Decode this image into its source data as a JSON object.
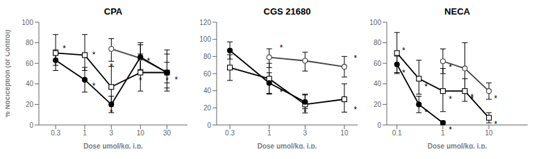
{
  "chart_data": [
    {
      "type": "line",
      "title": "CPA",
      "xlabel": "Dose μmol/kg, i.p.",
      "ylabel": "% Nociception (or Control)",
      "log": "x",
      "xlim": [
        0.15,
        70
      ],
      "ylim": [
        0,
        100
      ],
      "yticks": [
        0,
        20,
        40,
        60,
        80,
        100
      ],
      "xticks": [
        0.3,
        1,
        3,
        10,
        30
      ],
      "series": [
        {
          "marker": "open_circle",
          "color": "#444444",
          "x": [
            3.0,
            10.0,
            30.0
          ],
          "values": [
            74,
            65,
            51
          ],
          "error_low": [
            12,
            12,
            15
          ],
          "error_high": [
            10,
            15,
            18
          ]
        },
        {
          "marker": "open_square",
          "color": "#000000",
          "x": [
            0.3,
            1.0,
            3.0,
            10.0,
            30.0
          ],
          "values": [
            70,
            68,
            37,
            51,
            51
          ],
          "error_low": [
            12,
            15,
            15,
            18,
            18
          ],
          "error_high": [
            18,
            20,
            20,
            18,
            22
          ]
        },
        {
          "marker": "filled_circle",
          "color": "#000000",
          "x": [
            0.3,
            1.0,
            3.0,
            10.0,
            30.0
          ],
          "values": [
            63,
            44,
            20,
            66,
            51
          ],
          "error_low": [
            10,
            12,
            8,
            12,
            10
          ],
          "error_high": [
            10,
            12,
            8,
            12,
            10
          ]
        }
      ],
      "annotations": [
        {
          "x": 0.43,
          "y": 74,
          "text": "*"
        },
        {
          "x": 1.45,
          "y": 68,
          "text": "*"
        },
        {
          "x": 1.45,
          "y": 38,
          "text": "*"
        },
        {
          "x": 3.0,
          "y": 57,
          "text": "*"
        },
        {
          "x": 3.0,
          "y": 12,
          "text": "*"
        },
        {
          "x": 10.0,
          "y": 43,
          "text": "*"
        },
        {
          "x": 14.0,
          "y": 62,
          "text": "*"
        },
        {
          "x": 30.0,
          "y": 43,
          "text": "*"
        },
        {
          "x": 44.0,
          "y": 44,
          "text": "*"
        }
      ]
    },
    {
      "type": "line",
      "title": "CGS 21680",
      "xlabel": "Dose μmol/kg, i.p.",
      "log": "x",
      "xlim": [
        0.2,
        15
      ],
      "ylim": [
        0,
        120
      ],
      "yticks": [
        0,
        20,
        40,
        60,
        80,
        100,
        120
      ],
      "xticks": [
        0.3,
        1,
        3,
        10
      ],
      "series": [
        {
          "marker": "open_circle",
          "color": "#444444",
          "x": [
            1.0,
            3.0,
            10.0
          ],
          "values": [
            79,
            75,
            68
          ],
          "error_low": [
            12,
            12,
            12
          ],
          "error_high": [
            10,
            10,
            12
          ]
        },
        {
          "marker": "open_square",
          "color": "#000000",
          "x": [
            0.3,
            1.0,
            3.0,
            10.0
          ],
          "values": [
            67,
            54,
            24,
            30
          ],
          "error_low": [
            15,
            18,
            10,
            15
          ],
          "error_high": [
            15,
            18,
            12,
            18
          ]
        },
        {
          "marker": "filled_circle",
          "color": "#000000",
          "x": [
            0.3,
            1.0,
            3.0
          ],
          "values": [
            87,
            49,
            27
          ],
          "error_low": [
            10,
            12,
            8
          ],
          "error_high": [
            10,
            12,
            8
          ]
        }
      ],
      "annotations": [
        {
          "x": 1.45,
          "y": 90,
          "text": "*"
        },
        {
          "x": 1.45,
          "y": 38,
          "text": "*"
        },
        {
          "x": 3.0,
          "y": 15,
          "text": "*"
        },
        {
          "x": 14.0,
          "y": 78,
          "text": "*"
        },
        {
          "x": 14.0,
          "y": 18,
          "text": "*"
        }
      ]
    },
    {
      "type": "line",
      "title": "NECA",
      "xlabel": "Dose μmol/kg, i.p.",
      "log": "x",
      "xlim": [
        0.06,
        70
      ],
      "ylim": [
        0,
        100
      ],
      "yticks": [
        0,
        20,
        40,
        60,
        80,
        100
      ],
      "xticks": [
        0.1,
        1,
        10
      ],
      "series": [
        {
          "marker": "open_circle",
          "color": "#444444",
          "x": [
            1.0,
            3.0,
            10.0
          ],
          "values": [
            62,
            55,
            33
          ],
          "error_low": [
            12,
            22,
            8
          ],
          "error_high": [
            12,
            25,
            8
          ]
        },
        {
          "marker": "open_square",
          "color": "#000000",
          "x": [
            0.1,
            0.3,
            1.0,
            3.0,
            10.0
          ],
          "values": [
            70,
            45,
            33,
            33,
            7
          ],
          "error_low": [
            20,
            15,
            20,
            10,
            5
          ],
          "error_high": [
            20,
            18,
            22,
            12,
            5
          ]
        },
        {
          "marker": "filled_circle",
          "color": "#000000",
          "x": [
            0.1,
            0.3,
            1.0
          ],
          "values": [
            59,
            20,
            2
          ],
          "error_low": [
            8,
            8,
            2
          ],
          "error_high": [
            8,
            8,
            2
          ]
        }
      ],
      "annotations": [
        {
          "x": 0.14,
          "y": 72,
          "text": "*"
        },
        {
          "x": 0.14,
          "y": 51,
          "text": "*"
        },
        {
          "x": 0.43,
          "y": 37,
          "text": "*"
        },
        {
          "x": 0.43,
          "y": 12,
          "text": "*"
        },
        {
          "x": 1.45,
          "y": 56,
          "text": "*"
        },
        {
          "x": 1.45,
          "y": 25,
          "text": "*"
        },
        {
          "x": 1.45,
          "y": -5,
          "text": "*"
        },
        {
          "x": 4.3,
          "y": 27,
          "text": "*"
        },
        {
          "x": 4.3,
          "y": 25,
          "text": "*"
        },
        {
          "x": 14.0,
          "y": 1,
          "text": "*"
        },
        {
          "x": 14.0,
          "y": 26,
          "text": "*"
        }
      ]
    }
  ]
}
